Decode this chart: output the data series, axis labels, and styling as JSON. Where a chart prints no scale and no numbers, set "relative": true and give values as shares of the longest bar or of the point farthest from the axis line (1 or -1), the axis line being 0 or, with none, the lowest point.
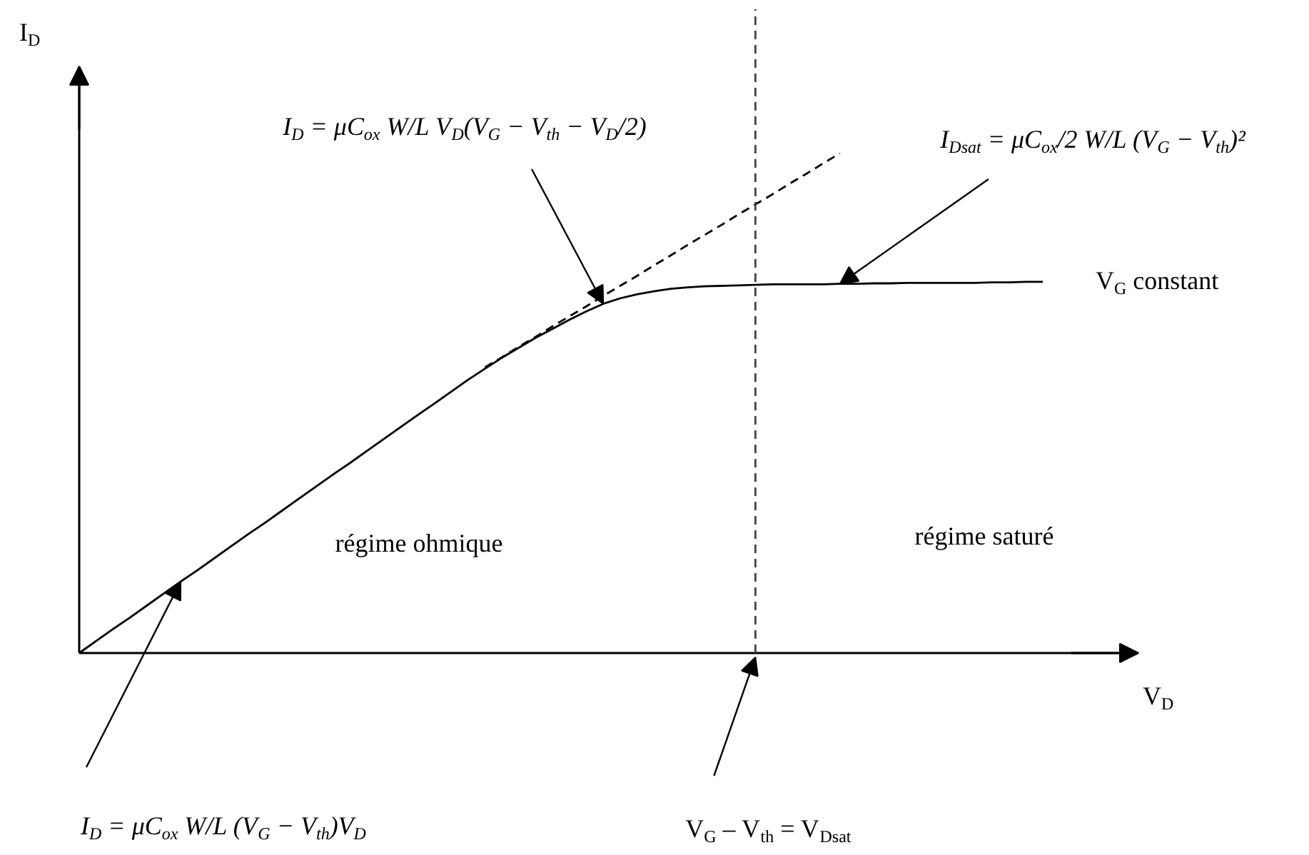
{
  "chart_data": {
    "type": "line",
    "relative": true,
    "annotations": [
      "I$_{D}$ = μC$_{ox}$ W/L V$_{D}$(V$_{G}$ − V$_{th}$ − V$_{D}$/2)",
      "I$_{Dsat}$ = μC$_{ox}$/2 W/L (V$_{G}$ − V$_{th}$)²",
      "I$_{D}$ = μC$_{ox}$ W/L (V$_{G}$ − V$_{th}$)V$_{D}$",
      "régime ohmique",
      "régime saturé",
      "V$_{G}$ – V$_{th}$ = V$_{Dsat}$"
    ],
    "categories": [
      null,
      null,
      null,
      null,
      null,
      null,
      null,
      null,
      null,
      null,
      null,
      null,
      null,
      null,
      null,
      null,
      null,
      null,
      null,
      null,
      null,
      null,
      null,
      null,
      null,
      null,
      null,
      null,
      null,
      null,
      null,
      null,
      null,
      null,
      null,
      null,
      null,
      null,
      null,
      null,
      null,
      null,
      null,
      null,
      null,
      null,
      null,
      null,
      null,
      null,
      null,
      null,
      null,
      null,
      null,
      null,
      null,
      null
    ],
    "series": [
      {
        "name": "V$_{G}$ constant",
        "color": "#000000",
        "values": [
          0,
          0.024,
          0.048,
          0.071,
          0.095,
          0.119,
          0.143,
          0.166,
          0.19,
          0.214,
          0.238,
          0.261,
          0.285,
          0.309,
          0.333,
          0.357,
          0.38,
          0.404,
          0.428,
          0.452,
          0.476,
          0.499,
          0.523,
          0.547,
          0.569,
          0.591,
          0.611,
          0.631,
          0.649,
          0.667,
          0.684,
          0.699,
          0.71,
          0.718,
          0.724,
          0.729,
          0.732,
          0.734,
          0.735,
          0.736,
          0.737,
          0.738,
          0.738,
          0.738,
          0.738,
          0.739,
          0.739,
          0.74,
          0.74,
          0.741,
          0.741,
          0.741,
          0.741,
          0.741,
          0.742,
          0.742,
          0.743,
          0.743
        ]
      },
      {
        "color": "#000000",
        "line_style": "dashed",
        "values": [
          null,
          null,
          null,
          null,
          null,
          null,
          null,
          null,
          null,
          null,
          null,
          null,
          null,
          null,
          null,
          null,
          null,
          null,
          null,
          null,
          null,
          null,
          null,
          null,
          0.572,
          0.592,
          0.613,
          0.633,
          0.654,
          0.674,
          0.694,
          0.715,
          0.735,
          0.755,
          0.776,
          0.796,
          0.817,
          0.837,
          0.857,
          0.878,
          0.898,
          0.918,
          0.939,
          0.959,
          0.98,
          1.0,
          null,
          null,
          null,
          null,
          null,
          null,
          null,
          null,
          null,
          null,
          null,
          null
        ]
      }
    ],
    "xlabel": "V$_{D}$",
    "ylabel": "I$_{D}$"
  }
}
